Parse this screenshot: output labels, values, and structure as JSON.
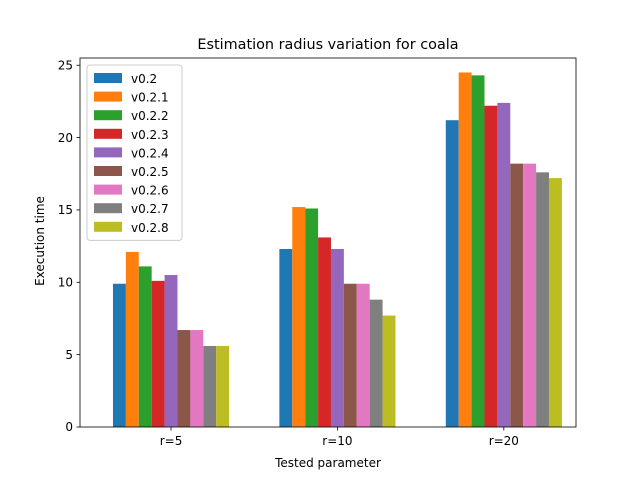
{
  "chart_data": {
    "type": "bar",
    "title": "Estimation radius variation for coala",
    "xlabel": "Tested parameter",
    "ylabel": "Execution time",
    "categories": [
      "r=5",
      "r=10",
      "r=20"
    ],
    "ylim": [
      0,
      25.5
    ],
    "yticks": [
      0,
      5,
      10,
      15,
      20,
      25
    ],
    "legend_position": "top-left",
    "grid": false,
    "series": [
      {
        "name": "v0.2",
        "color": "#1f77b4",
        "values": [
          9.9,
          12.3,
          21.2
        ]
      },
      {
        "name": "v0.2.1",
        "color": "#ff7f0e",
        "values": [
          12.1,
          15.2,
          24.5
        ]
      },
      {
        "name": "v0.2.2",
        "color": "#2ca02c",
        "values": [
          11.1,
          15.1,
          24.3
        ]
      },
      {
        "name": "v0.2.3",
        "color": "#d62728",
        "values": [
          10.1,
          13.1,
          22.2
        ]
      },
      {
        "name": "v0.2.4",
        "color": "#9467bd",
        "values": [
          10.5,
          12.3,
          22.4
        ]
      },
      {
        "name": "v0.2.5",
        "color": "#8c564b",
        "values": [
          6.7,
          9.9,
          18.2
        ]
      },
      {
        "name": "v0.2.6",
        "color": "#e377c2",
        "values": [
          6.7,
          9.9,
          18.2
        ]
      },
      {
        "name": "v0.2.7",
        "color": "#7f7f7f",
        "values": [
          5.6,
          8.8,
          17.6
        ]
      },
      {
        "name": "v0.2.8",
        "color": "#bcbd22",
        "values": [
          5.6,
          7.7,
          17.2
        ]
      }
    ]
  }
}
